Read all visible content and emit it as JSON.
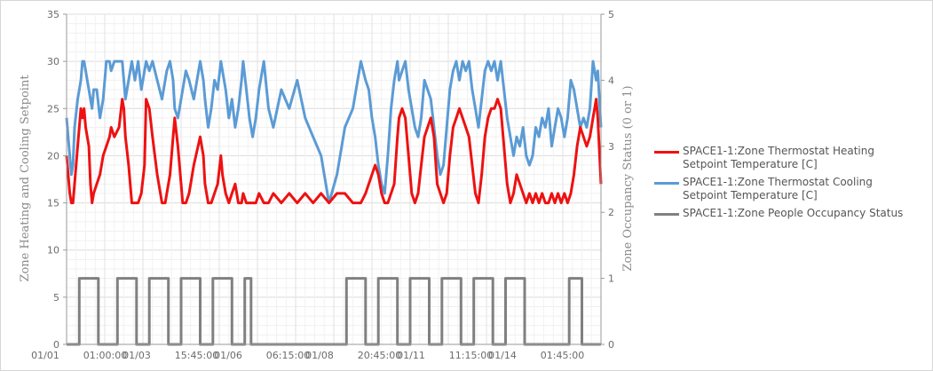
{
  "chart_data": {
    "type": "line",
    "title": "",
    "ylabel": "Zone Heating and Cooling Setpoint",
    "y2label": "Zone Occupancy Status (0 or 1)",
    "ylim": [
      0,
      35
    ],
    "y2lim": [
      0,
      5
    ],
    "yticks": [
      "0",
      "5",
      "10",
      "15",
      "20",
      "25",
      "30",
      "35"
    ],
    "y2ticks": [
      "0",
      "1",
      "2",
      "3",
      "4",
      "5"
    ],
    "xlim_hours": [
      0,
      336
    ],
    "x_tick_labels": [
      "01/01",
      "01:00:00",
      "01/03",
      "15:45:00",
      "01/06",
      "06:15:00",
      "01/08",
      "20:45:00",
      "01/11",
      "11:15:00",
      "01/14",
      "01:45:00"
    ],
    "grid": true,
    "legend_position": "right",
    "series": [
      {
        "name": "SPACE1-1:Zone Thermostat Heating Setpoint Temperature [C]",
        "color": "#ee1111",
        "axis": "left",
        "x": [
          0,
          2,
          3,
          4,
          5,
          7,
          9,
          10,
          11,
          12,
          14,
          15,
          16,
          17,
          19,
          21,
          23,
          25,
          27,
          28,
          30,
          33,
          35,
          36,
          37,
          39,
          41,
          43,
          45,
          47,
          49,
          50,
          52,
          54,
          57,
          60,
          62,
          63,
          65,
          67,
          68,
          70,
          72,
          73,
          75,
          77,
          80,
          84,
          86,
          87,
          89,
          91,
          93,
          95,
          97,
          98,
          100,
          102,
          104,
          106,
          108,
          110,
          111,
          113,
          115,
          117,
          119,
          121,
          124,
          127,
          130,
          135,
          140,
          145,
          150,
          155,
          160,
          165,
          170,
          175,
          180,
          185,
          188,
          190,
          192,
          194,
          196,
          198,
          200,
          202,
          204,
          206,
          208,
          209,
          211,
          213,
          215,
          217,
          219,
          221,
          223,
          225,
          227,
          229,
          231,
          233,
          235,
          237,
          239,
          241,
          243,
          245,
          247,
          249,
          251,
          253,
          255,
          257,
          259,
          261,
          263,
          265,
          267,
          269,
          271,
          273,
          275,
          277,
          279,
          281,
          283,
          285,
          287,
          289,
          291,
          293,
          295,
          297,
          299,
          301,
          303,
          305,
          307,
          309,
          311,
          313,
          315,
          317,
          319,
          321,
          323,
          325,
          327,
          329,
          331,
          333,
          334,
          336
        ],
        "values": [
          20,
          16,
          15,
          15,
          17,
          21,
          25,
          24,
          25,
          23,
          21,
          17,
          15,
          16,
          17,
          18,
          20,
          21,
          22,
          23,
          22,
          23,
          26,
          25,
          22,
          19,
          15,
          15,
          15,
          16,
          19,
          26,
          25,
          22,
          18,
          15,
          15,
          16,
          18,
          22,
          24,
          21,
          17,
          15,
          15,
          16,
          19,
          22,
          20,
          17,
          15,
          15,
          16,
          17,
          20,
          18,
          16,
          15,
          16,
          17,
          15,
          15,
          16,
          15,
          15,
          15,
          15,
          16,
          15,
          15,
          16,
          15,
          16,
          15,
          16,
          15,
          16,
          15,
          16,
          16,
          15,
          15,
          16,
          17,
          18,
          19,
          18,
          16,
          15,
          15,
          16,
          17,
          22,
          24,
          25,
          24,
          20,
          16,
          15,
          16,
          19,
          22,
          23,
          24,
          22,
          17,
          16,
          15,
          16,
          20,
          23,
          24,
          25,
          24,
          23,
          22,
          19,
          16,
          15,
          18,
          22,
          24,
          25,
          25,
          26,
          25,
          21,
          17,
          15,
          16,
          18,
          17,
          16,
          15,
          16,
          15,
          16,
          15,
          16,
          15,
          15,
          16,
          15,
          16,
          15,
          16,
          15,
          16,
          18,
          21,
          23,
          22,
          21,
          22,
          24,
          26,
          24,
          17
        ]
      },
      {
        "name": "SPACE1-1:Zone Thermostat Cooling Setpoint Temperature [C]",
        "color": "#5b9bd5",
        "axis": "left",
        "x": [
          0,
          2,
          3,
          4,
          5,
          7,
          9,
          10,
          11,
          12,
          14,
          15,
          16,
          17,
          19,
          21,
          23,
          25,
          27,
          28,
          30,
          33,
          35,
          36,
          37,
          39,
          41,
          43,
          45,
          47,
          49,
          50,
          52,
          54,
          57,
          60,
          62,
          63,
          65,
          67,
          68,
          70,
          72,
          73,
          75,
          77,
          80,
          84,
          86,
          87,
          89,
          91,
          93,
          95,
          97,
          98,
          100,
          102,
          104,
          106,
          108,
          110,
          111,
          113,
          115,
          117,
          119,
          121,
          124,
          127,
          130,
          135,
          140,
          145,
          150,
          155,
          160,
          165,
          170,
          175,
          180,
          185,
          188,
          190,
          192,
          194,
          196,
          198,
          200,
          202,
          204,
          206,
          208,
          209,
          211,
          213,
          215,
          217,
          219,
          221,
          223,
          225,
          227,
          229,
          231,
          233,
          235,
          237,
          239,
          241,
          243,
          245,
          247,
          249,
          251,
          253,
          255,
          257,
          259,
          261,
          263,
          265,
          267,
          269,
          271,
          273,
          275,
          277,
          279,
          281,
          283,
          285,
          287,
          289,
          291,
          293,
          295,
          297,
          299,
          301,
          303,
          305,
          307,
          309,
          311,
          313,
          315,
          317,
          319,
          321,
          323,
          325,
          327,
          329,
          331,
          333,
          334,
          336
        ],
        "values": [
          24,
          20,
          18,
          19,
          23,
          26,
          28,
          30,
          30,
          29,
          27,
          26,
          25,
          27,
          27,
          24,
          26,
          30,
          30,
          29,
          30,
          30,
          30,
          28,
          26,
          28,
          30,
          28,
          30,
          27,
          29,
          30,
          29,
          30,
          28,
          26,
          28,
          29,
          30,
          28,
          25,
          24,
          26,
          27,
          29,
          28,
          26,
          30,
          28,
          26,
          23,
          25,
          28,
          27,
          30,
          29,
          27,
          24,
          26,
          23,
          25,
          28,
          30,
          27,
          24,
          22,
          24,
          27,
          30,
          25,
          23,
          27,
          25,
          28,
          24,
          22,
          20,
          15,
          18,
          23,
          25,
          30,
          28,
          27,
          24,
          22,
          19,
          17,
          16,
          20,
          25,
          28,
          30,
          28,
          29,
          30,
          27,
          25,
          23,
          22,
          24,
          28,
          27,
          26,
          23,
          20,
          18,
          19,
          23,
          27,
          29,
          30,
          28,
          30,
          29,
          30,
          27,
          25,
          23,
          26,
          29,
          30,
          29,
          30,
          28,
          30,
          27,
          24,
          22,
          20,
          22,
          21,
          23,
          20,
          19,
          20,
          23,
          22,
          24,
          23,
          25,
          21,
          23,
          25,
          24,
          22,
          24,
          28,
          27,
          25,
          23,
          24,
          23,
          25,
          30,
          28,
          29,
          23
        ]
      },
      {
        "name": "SPACE1-1:Zone People Occupancy Status",
        "color": "#808080",
        "axis": "right",
        "x": [
          0,
          8,
          8,
          20,
          20,
          32,
          32,
          44,
          44,
          52,
          52,
          64,
          64,
          72,
          72,
          84,
          84,
          92,
          92,
          104,
          104,
          112,
          112,
          116,
          116,
          152,
          152,
          176,
          176,
          188,
          188,
          196,
          196,
          208,
          208,
          216,
          216,
          228,
          228,
          236,
          236,
          248,
          248,
          256,
          256,
          268,
          268,
          276,
          276,
          288,
          288,
          316,
          316,
          324,
          324,
          336
        ],
        "values": [
          0,
          0,
          1,
          1,
          0,
          0,
          1,
          1,
          0,
          0,
          1,
          1,
          0,
          0,
          1,
          1,
          0,
          0,
          1,
          1,
          0,
          0,
          1,
          1,
          0,
          0,
          0,
          0,
          1,
          1,
          0,
          0,
          1,
          1,
          0,
          0,
          1,
          1,
          0,
          0,
          1,
          1,
          0,
          0,
          1,
          1,
          0,
          0,
          1,
          1,
          0,
          0,
          1,
          1,
          0,
          0
        ]
      }
    ]
  }
}
